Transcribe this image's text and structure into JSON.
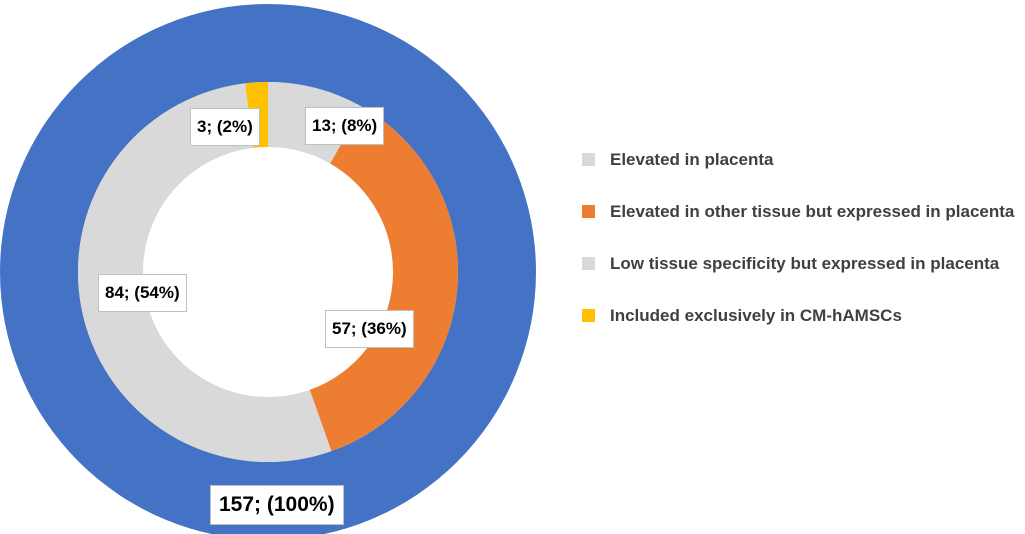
{
  "chart_data": {
    "type": "donut",
    "rings": [
      {
        "values": [
          157
        ],
        "value_labels": [
          "157; (100%)"
        ],
        "colors": [
          "#4472c4"
        ]
      },
      {
        "categories": [
          "Elevated in placenta",
          "Elevated in other tissue but expressed in placenta",
          "Low tissue specificity but expressed in placenta",
          "Included exclusively in CM-hAMSCs"
        ],
        "values": [
          13,
          57,
          84,
          3
        ],
        "value_labels": [
          "13; (8%)",
          "57; (36%)",
          "84; (54%)",
          "3; (2%)"
        ],
        "colors": [
          "#d9d9d9",
          "#ed7d31",
          "#d9d9d9",
          "#ffc000"
        ]
      }
    ],
    "legend": "right"
  }
}
